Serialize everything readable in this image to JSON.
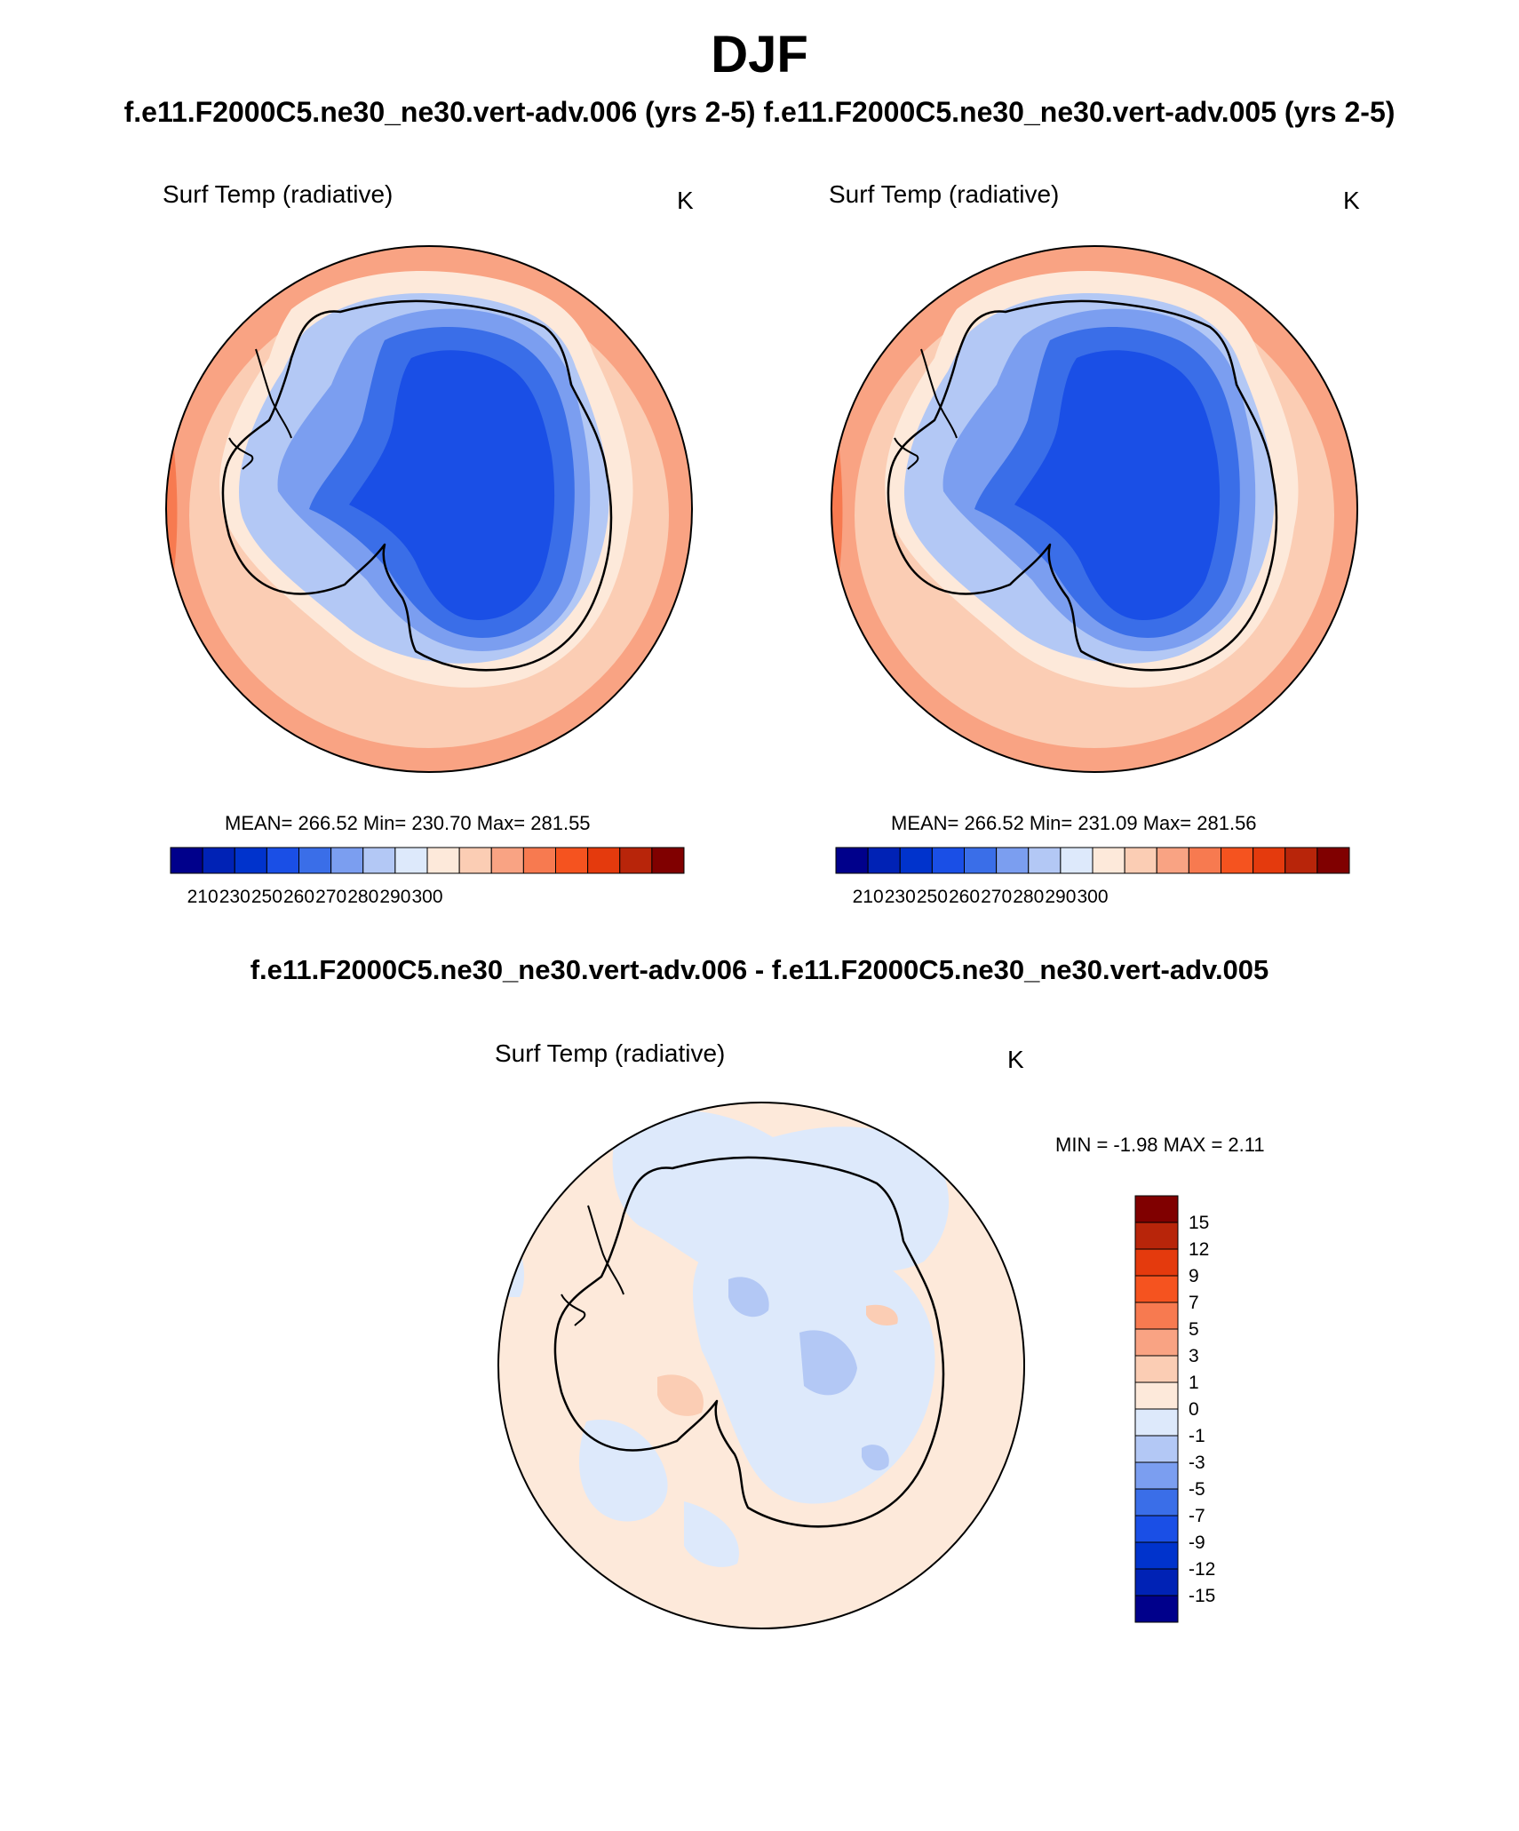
{
  "header": {
    "title": "DJF",
    "subtitle": "f.e11.F2000C5.ne30_ne30.vert-adv.006 (yrs 2-5)  f.e11.F2000C5.ne30_ne30.vert-adv.005 (yrs 2-5)"
  },
  "panel_left": {
    "variable": "Surf Temp (radiative)",
    "units": "K",
    "stats": "MEAN= 266.52  Min= 230.70  Max= 281.55"
  },
  "panel_right": {
    "variable": "Surf Temp (radiative)",
    "units": "K",
    "stats": "MEAN= 266.52  Min= 231.09  Max= 281.56"
  },
  "panel_diff": {
    "title": "f.e11.F2000C5.ne30_ne30.vert-adv.006 - f.e11.F2000C5.ne30_ne30.vert-adv.005",
    "variable": "Surf Temp (radiative)",
    "units": "K",
    "stats": "MIN =  -1.98 MAX =   2.11"
  },
  "colorbar_abs": {
    "labels": [
      "210",
      "230",
      "250",
      "260",
      "270",
      "280",
      "290",
      "300"
    ],
    "colors": [
      "#00008b",
      "#0022b5",
      "#0033cc",
      "#1a4fe6",
      "#3a6ee8",
      "#7b9ef0",
      "#b3c8f5",
      "#dde9fb",
      "#fde9da",
      "#fbcdb4",
      "#f9a383",
      "#f77a50",
      "#f5531f",
      "#e43a0d",
      "#b8250a",
      "#800000"
    ]
  },
  "colorbar_diff": {
    "labels": [
      "15",
      "12",
      "9",
      "7",
      "5",
      "3",
      "1",
      "0",
      "-1",
      "-3",
      "-5",
      "-7",
      "-9",
      "-12",
      "-15"
    ],
    "colors": [
      "#800000",
      "#b8250a",
      "#e43a0d",
      "#f5531f",
      "#f77a50",
      "#f9a383",
      "#fbcdb4",
      "#fde9da",
      "#dde9fb",
      "#b3c8f5",
      "#7b9ef0",
      "#3a6ee8",
      "#1a4fe6",
      "#0033cc",
      "#0022b5",
      "#00008b"
    ]
  }
}
